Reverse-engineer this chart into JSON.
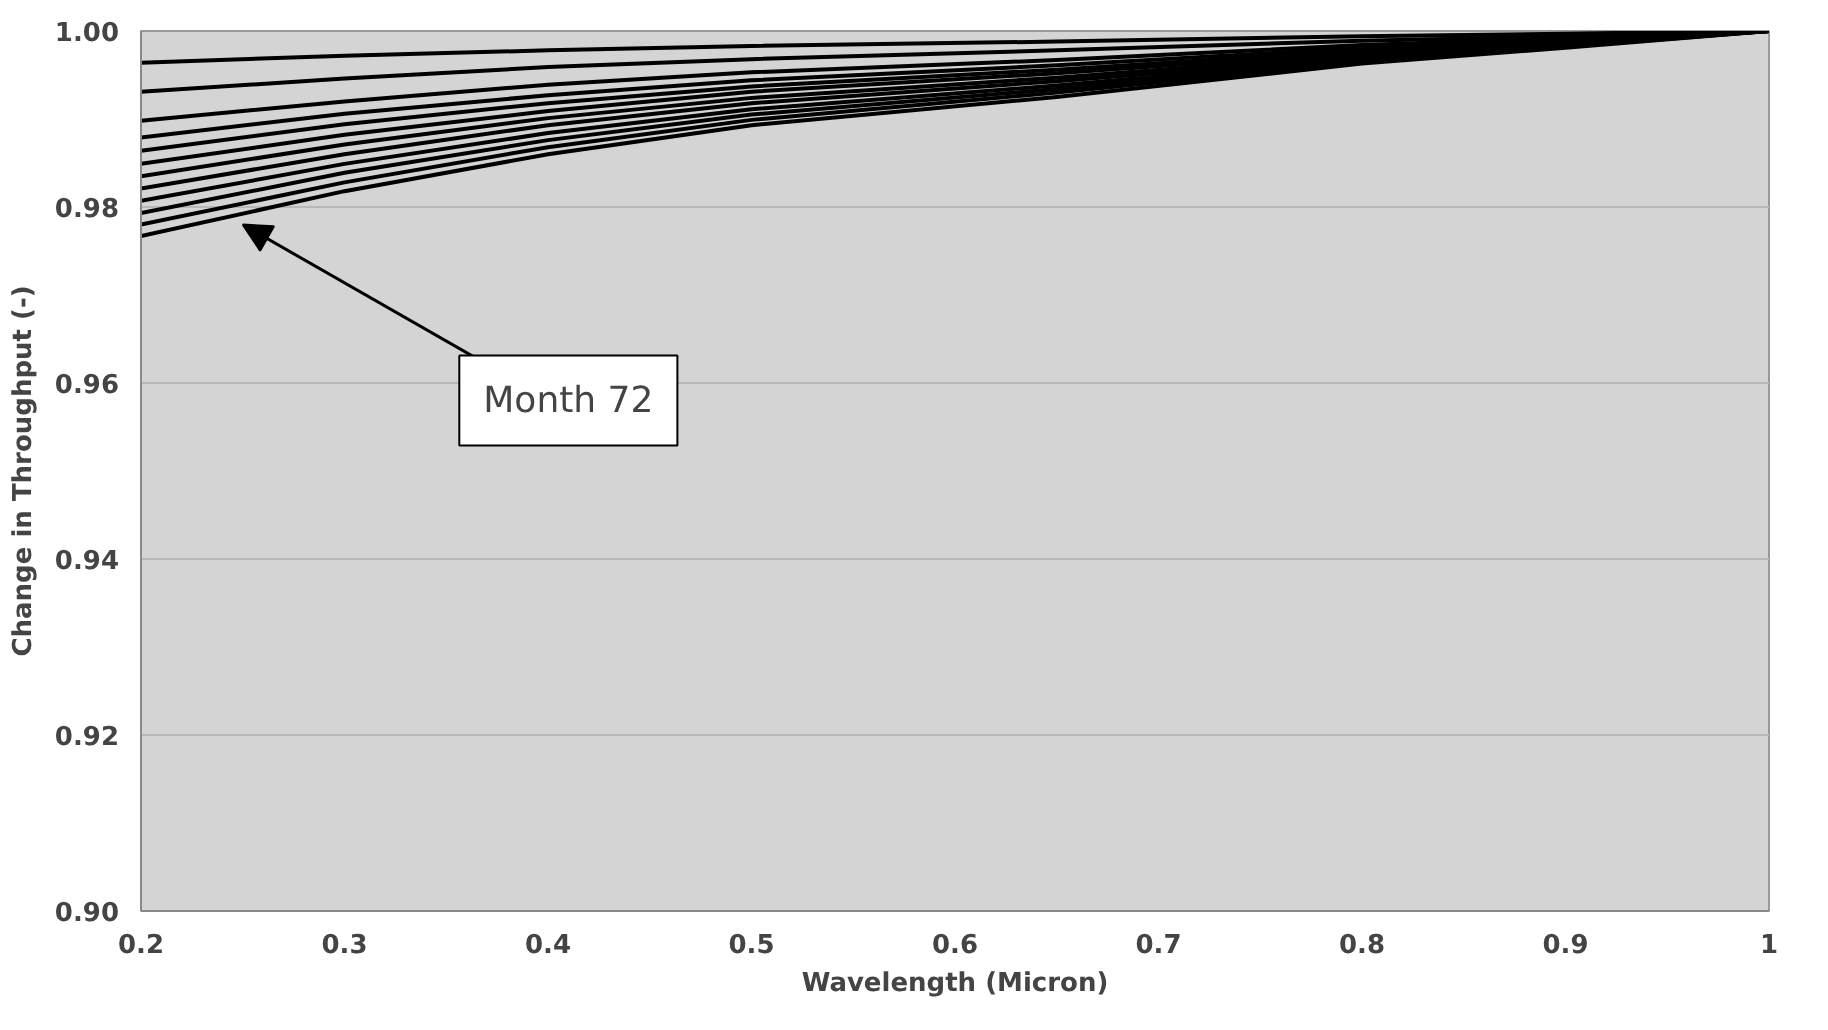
{
  "chart_data": {
    "type": "line",
    "xlabel": "Wavelength (Micron)",
    "ylabel": "Change in Throughput (-)",
    "x": [
      0.2,
      0.3,
      0.4,
      0.5,
      0.65,
      0.8,
      0.9,
      1.0
    ],
    "series": [
      {
        "color": "#000000",
        "values": [
          0.9964,
          0.9972,
          0.9978,
          0.9983,
          0.9988,
          0.9994,
          0.9997,
          1.0
        ]
      },
      {
        "color": "#000000",
        "values": [
          0.9931,
          0.9946,
          0.9959,
          0.9968,
          0.9978,
          0.9989,
          0.9994,
          1.0
        ]
      },
      {
        "color": "#000000",
        "values": [
          0.9898,
          0.992,
          0.9939,
          0.9953,
          0.9967,
          0.9984,
          0.9992,
          1.0
        ]
      },
      {
        "color": "#000000",
        "values": [
          0.9879,
          0.9906,
          0.9927,
          0.9944,
          0.9961,
          0.9981,
          0.999,
          1.0
        ]
      },
      {
        "color": "#000000",
        "values": [
          0.9864,
          0.9894,
          0.9918,
          0.9937,
          0.9956,
          0.9978,
          0.9989,
          1.0
        ]
      },
      {
        "color": "#000000",
        "values": [
          0.9849,
          0.9882,
          0.9909,
          0.9931,
          0.9952,
          0.9976,
          0.9988,
          1.0
        ]
      },
      {
        "color": "#000000",
        "values": [
          0.9835,
          0.9871,
          0.9901,
          0.9924,
          0.9947,
          0.9974,
          0.9987,
          1.0
        ]
      },
      {
        "color": "#000000",
        "values": [
          0.9821,
          0.986,
          0.9893,
          0.9918,
          0.9943,
          0.9971,
          0.9986,
          1.0
        ]
      },
      {
        "color": "#000000",
        "values": [
          0.9807,
          0.9849,
          0.9884,
          0.9911,
          0.9938,
          0.9969,
          0.9985,
          1.0
        ]
      },
      {
        "color": "#000000",
        "values": [
          0.9793,
          0.9839,
          0.9876,
          0.9905,
          0.9934,
          0.9967,
          0.9983,
          1.0
        ]
      },
      {
        "color": "#000000",
        "values": [
          0.978,
          0.9828,
          0.9868,
          0.9899,
          0.993,
          0.9965,
          0.9982,
          1.0
        ]
      },
      {
        "color": "#000000",
        "values": [
          0.9767,
          0.9818,
          0.986,
          0.9893,
          0.9925,
          0.9963,
          0.9981,
          1.0
        ]
      }
    ],
    "xlim": [
      0.2,
      1.0
    ],
    "ylim": [
      0.9,
      1.0
    ],
    "xticks": [
      {
        "value": 0.2,
        "label": "0.2"
      },
      {
        "value": 0.3,
        "label": "0.3"
      },
      {
        "value": 0.4,
        "label": "0.4"
      },
      {
        "value": 0.5,
        "label": "0.5"
      },
      {
        "value": 0.6,
        "label": "0.6"
      },
      {
        "value": 0.7,
        "label": "0.7"
      },
      {
        "value": 0.8,
        "label": "0.8"
      },
      {
        "value": 0.9,
        "label": "0.9"
      },
      {
        "value": 1.0,
        "label": "1"
      }
    ],
    "yticks": [
      {
        "value": 0.9,
        "label": "0.90"
      },
      {
        "value": 0.92,
        "label": "0.92"
      },
      {
        "value": 0.94,
        "label": "0.94"
      },
      {
        "value": 0.96,
        "label": "0.96"
      },
      {
        "value": 0.98,
        "label": "0.98"
      },
      {
        "value": 1.0,
        "label": "1.00"
      }
    ],
    "grid": "y",
    "marker": "none",
    "line_style": "solid",
    "annotations": [
      {
        "text": "Month 72",
        "x": 0.25,
        "y": 0.978
      }
    ]
  }
}
